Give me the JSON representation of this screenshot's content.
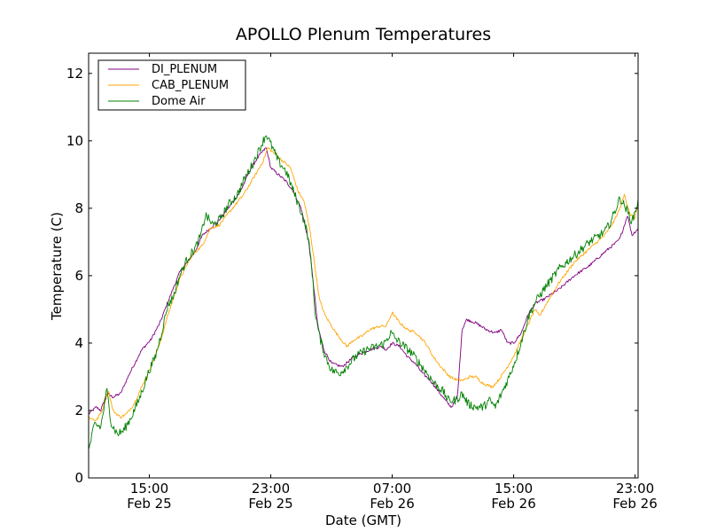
{
  "chart_data": {
    "type": "line",
    "title": "APOLLO Plenum Temperatures",
    "xlabel": "Date (GMT)",
    "ylabel": "Temperature (C)",
    "x_units": "hours since Feb 25 11:00 GMT",
    "xlim": [
      0,
      36.2
    ],
    "ylim": [
      0,
      12.6
    ],
    "y_ticks": [
      0,
      2,
      4,
      6,
      8,
      10,
      12
    ],
    "x_ticks": [
      {
        "x": 4,
        "time": "15:00",
        "date": "Feb 25"
      },
      {
        "x": 12,
        "time": "23:00",
        "date": "Feb 25"
      },
      {
        "x": 20,
        "time": "07:00",
        "date": "Feb 26"
      },
      {
        "x": 28,
        "time": "15:00",
        "date": "Feb 26"
      },
      {
        "x": 36,
        "time": "23:00",
        "date": "Feb 26"
      }
    ],
    "legend_position": "top-left",
    "series": [
      {
        "name": "DI_PLENUM",
        "color": "#800080",
        "noise": 0.04,
        "points": [
          [
            0,
            1.9
          ],
          [
            0.5,
            2.1
          ],
          [
            0.8,
            2.0
          ],
          [
            1.2,
            2.5
          ],
          [
            1.6,
            2.4
          ],
          [
            2.1,
            2.5
          ],
          [
            2.7,
            3.1
          ],
          [
            3.5,
            3.8
          ],
          [
            4.1,
            4.1
          ],
          [
            4.7,
            4.6
          ],
          [
            5.2,
            5.2
          ],
          [
            6.0,
            6.1
          ],
          [
            7.0,
            6.7
          ],
          [
            7.5,
            7.2
          ],
          [
            8.0,
            7.4
          ],
          [
            8.5,
            7.6
          ],
          [
            9.2,
            8.0
          ],
          [
            10.0,
            8.5
          ],
          [
            10.7,
            9.2
          ],
          [
            11.3,
            9.6
          ],
          [
            11.7,
            9.8
          ],
          [
            12.0,
            9.2
          ],
          [
            12.5,
            9.0
          ],
          [
            13.0,
            8.8
          ],
          [
            13.5,
            8.5
          ],
          [
            14.0,
            8.0
          ],
          [
            14.5,
            7.0
          ],
          [
            14.8,
            5.8
          ],
          [
            15.1,
            4.5
          ],
          [
            15.5,
            3.8
          ],
          [
            16.0,
            3.4
          ],
          [
            16.7,
            3.3
          ],
          [
            17.5,
            3.6
          ],
          [
            18.5,
            3.8
          ],
          [
            19.3,
            3.9
          ],
          [
            19.6,
            3.8
          ],
          [
            20.0,
            4.0
          ],
          [
            20.5,
            3.9
          ],
          [
            21.0,
            3.6
          ],
          [
            21.5,
            3.4
          ],
          [
            22.0,
            3.1
          ],
          [
            22.5,
            2.9
          ],
          [
            23.0,
            2.6
          ],
          [
            23.5,
            2.3
          ],
          [
            23.9,
            2.1
          ],
          [
            24.3,
            2.4
          ],
          [
            24.6,
            4.4
          ],
          [
            24.9,
            4.7
          ],
          [
            25.5,
            4.6
          ],
          [
            26.2,
            4.4
          ],
          [
            26.8,
            4.3
          ],
          [
            27.2,
            4.4
          ],
          [
            27.6,
            4.0
          ],
          [
            28.0,
            4.0
          ],
          [
            28.5,
            4.3
          ],
          [
            29.0,
            4.9
          ],
          [
            29.5,
            5.2
          ],
          [
            30.0,
            5.3
          ],
          [
            31.0,
            5.6
          ],
          [
            32.0,
            6.0
          ],
          [
            33.0,
            6.3
          ],
          [
            34.0,
            6.7
          ],
          [
            34.8,
            7.0
          ],
          [
            35.0,
            7.1
          ],
          [
            35.3,
            7.5
          ],
          [
            35.5,
            7.8
          ],
          [
            35.8,
            7.2
          ],
          [
            36.2,
            7.4
          ]
        ]
      },
      {
        "name": "CAB_PLENUM",
        "color": "#FFA500",
        "noise": 0.04,
        "points": [
          [
            0,
            1.8
          ],
          [
            0.5,
            1.7
          ],
          [
            0.9,
            2.0
          ],
          [
            1.3,
            2.6
          ],
          [
            1.6,
            2.0
          ],
          [
            2.1,
            1.8
          ],
          [
            2.5,
            1.9
          ],
          [
            3.0,
            2.2
          ],
          [
            3.6,
            2.8
          ],
          [
            4.3,
            3.5
          ],
          [
            4.7,
            4.0
          ],
          [
            5.2,
            4.8
          ],
          [
            6.0,
            5.9
          ],
          [
            6.8,
            6.6
          ],
          [
            7.5,
            6.9
          ],
          [
            8.0,
            7.4
          ],
          [
            8.6,
            7.5
          ],
          [
            9.3,
            7.9
          ],
          [
            10.2,
            8.4
          ],
          [
            11.0,
            9.0
          ],
          [
            11.5,
            9.4
          ],
          [
            11.8,
            9.8
          ],
          [
            12.3,
            9.6
          ],
          [
            12.8,
            9.4
          ],
          [
            13.3,
            9.2
          ],
          [
            13.8,
            8.5
          ],
          [
            14.2,
            8.2
          ],
          [
            14.6,
            7.3
          ],
          [
            14.9,
            6.3
          ],
          [
            15.2,
            5.3
          ],
          [
            15.6,
            4.8
          ],
          [
            16.3,
            4.3
          ],
          [
            17.0,
            3.9
          ],
          [
            17.5,
            4.1
          ],
          [
            18.0,
            4.2
          ],
          [
            18.5,
            4.4
          ],
          [
            19.2,
            4.5
          ],
          [
            19.6,
            4.5
          ],
          [
            20.0,
            4.9
          ],
          [
            20.5,
            4.6
          ],
          [
            21.0,
            4.4
          ],
          [
            21.6,
            4.3
          ],
          [
            22.2,
            4.0
          ],
          [
            22.7,
            3.6
          ],
          [
            23.2,
            3.3
          ],
          [
            23.8,
            3.0
          ],
          [
            24.3,
            2.9
          ],
          [
            24.7,
            2.9
          ],
          [
            25.1,
            3.0
          ],
          [
            25.5,
            3.0
          ],
          [
            26.0,
            2.8
          ],
          [
            26.6,
            2.7
          ],
          [
            27.0,
            2.9
          ],
          [
            27.6,
            3.3
          ],
          [
            28.1,
            3.7
          ],
          [
            28.6,
            4.2
          ],
          [
            29.0,
            4.6
          ],
          [
            29.4,
            5.0
          ],
          [
            29.7,
            4.8
          ],
          [
            30.2,
            5.2
          ],
          [
            31.0,
            5.8
          ],
          [
            32.0,
            6.4
          ],
          [
            33.0,
            6.8
          ],
          [
            34.0,
            7.2
          ],
          [
            34.6,
            7.6
          ],
          [
            35.0,
            8.0
          ],
          [
            35.3,
            8.4
          ],
          [
            35.7,
            7.8
          ],
          [
            36.0,
            7.7
          ],
          [
            36.2,
            8.2
          ]
        ]
      },
      {
        "name": "Dome Air",
        "color": "#008000",
        "noise": 0.13,
        "points": [
          [
            0,
            0.8
          ],
          [
            0.4,
            1.6
          ],
          [
            0.8,
            1.5
          ],
          [
            1.2,
            2.6
          ],
          [
            1.5,
            1.6
          ],
          [
            1.9,
            1.3
          ],
          [
            2.3,
            1.4
          ],
          [
            2.8,
            1.8
          ],
          [
            3.3,
            2.3
          ],
          [
            4.0,
            3.2
          ],
          [
            4.4,
            3.6
          ],
          [
            4.8,
            4.3
          ],
          [
            5.2,
            5.1
          ],
          [
            5.6,
            5.4
          ],
          [
            6.0,
            6.0
          ],
          [
            6.5,
            6.5
          ],
          [
            7.0,
            6.8
          ],
          [
            7.4,
            7.2
          ],
          [
            7.7,
            7.8
          ],
          [
            8.2,
            7.5
          ],
          [
            8.7,
            7.7
          ],
          [
            9.2,
            8.1
          ],
          [
            9.8,
            8.4
          ],
          [
            10.3,
            8.9
          ],
          [
            10.8,
            9.3
          ],
          [
            11.3,
            9.8
          ],
          [
            11.7,
            10.2
          ],
          [
            12.1,
            9.8
          ],
          [
            12.5,
            9.4
          ],
          [
            13.0,
            9.1
          ],
          [
            13.5,
            8.5
          ],
          [
            14.0,
            7.9
          ],
          [
            14.4,
            7.3
          ],
          [
            14.7,
            6.3
          ],
          [
            14.9,
            5.0
          ],
          [
            15.2,
            4.2
          ],
          [
            15.6,
            3.6
          ],
          [
            16.0,
            3.2
          ],
          [
            16.5,
            3.1
          ],
          [
            17.0,
            3.3
          ],
          [
            17.6,
            3.6
          ],
          [
            18.3,
            3.8
          ],
          [
            19.0,
            3.9
          ],
          [
            19.5,
            4.0
          ],
          [
            19.9,
            4.3
          ],
          [
            20.3,
            4.1
          ],
          [
            20.8,
            3.9
          ],
          [
            21.3,
            3.7
          ],
          [
            21.8,
            3.4
          ],
          [
            22.3,
            3.1
          ],
          [
            22.8,
            2.8
          ],
          [
            23.3,
            2.6
          ],
          [
            23.7,
            2.3
          ],
          [
            24.2,
            2.3
          ],
          [
            24.6,
            2.5
          ],
          [
            25.0,
            2.2
          ],
          [
            25.5,
            2.1
          ],
          [
            26.0,
            2.1
          ],
          [
            26.4,
            2.3
          ],
          [
            26.8,
            2.1
          ],
          [
            27.2,
            2.5
          ],
          [
            27.7,
            3.0
          ],
          [
            28.2,
            3.6
          ],
          [
            28.6,
            4.2
          ],
          [
            29.0,
            4.8
          ],
          [
            29.4,
            5.2
          ],
          [
            30.0,
            5.6
          ],
          [
            31.0,
            6.2
          ],
          [
            32.0,
            6.6
          ],
          [
            33.0,
            7.0
          ],
          [
            34.0,
            7.3
          ],
          [
            34.4,
            7.6
          ],
          [
            35.0,
            8.3
          ],
          [
            35.4,
            8.0
          ],
          [
            35.8,
            7.6
          ],
          [
            36.2,
            8.2
          ]
        ]
      }
    ]
  }
}
